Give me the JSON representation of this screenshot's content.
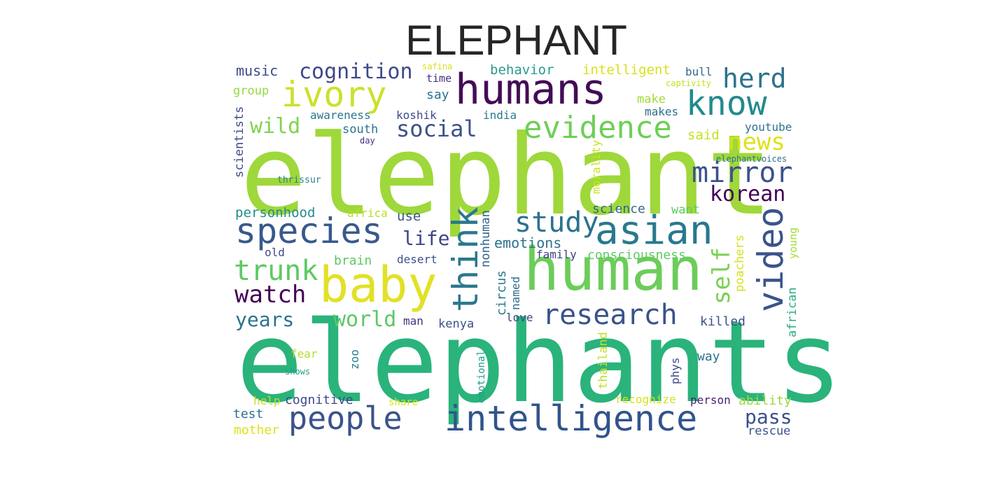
{
  "title": "ELEPHANT",
  "words": [
    {
      "text": "elephant",
      "color": "#9fd83a",
      "vertical": false
    },
    {
      "text": "elephants",
      "color": "#2ab37b",
      "vertical": false
    },
    {
      "text": "humans",
      "color": "#440c57",
      "vertical": false
    },
    {
      "text": "human",
      "color": "#6ccd5a",
      "vertical": false
    },
    {
      "text": "baby",
      "color": "#e1e126",
      "vertical": false
    },
    {
      "text": "intelligence",
      "color": "#31548c",
      "vertical": false
    },
    {
      "text": "asian",
      "color": "#29798e",
      "vertical": false
    },
    {
      "text": "species",
      "color": "#38598c",
      "vertical": false
    },
    {
      "text": "ivory",
      "color": "#cbe12a",
      "vertical": false
    },
    {
      "text": "people",
      "color": "#3a538b",
      "vertical": false
    },
    {
      "text": "know",
      "color": "#238a8d",
      "vertical": false
    },
    {
      "text": "evidence",
      "color": "#6fcf57",
      "vertical": false
    },
    {
      "text": "video",
      "color": "#3a538b",
      "vertical": true
    },
    {
      "text": "think",
      "color": "#2a788e",
      "vertical": true
    },
    {
      "text": "research",
      "color": "#3b528b",
      "vertical": false
    },
    {
      "text": "herd",
      "color": "#2c728e",
      "vertical": false
    },
    {
      "text": "study",
      "color": "#2c718e",
      "vertical": false
    },
    {
      "text": "mirror",
      "color": "#3b528b",
      "vertical": false
    },
    {
      "text": "trunk",
      "color": "#5ec962",
      "vertical": false
    },
    {
      "text": "news",
      "color": "#dde318",
      "vertical": false
    },
    {
      "text": "social",
      "color": "#3b518b",
      "vertical": false
    },
    {
      "text": "cognition",
      "color": "#3e4989",
      "vertical": false
    },
    {
      "text": "watch",
      "color": "#440256",
      "vertical": false
    },
    {
      "text": "world",
      "color": "#5cc863",
      "vertical": false
    },
    {
      "text": "wild",
      "color": "#7fd34e",
      "vertical": false
    },
    {
      "text": "self",
      "color": "#7ad151",
      "vertical": true
    },
    {
      "text": "korean",
      "color": "#440154",
      "vertical": false
    },
    {
      "text": "life",
      "color": "#3f4788",
      "vertical": false
    },
    {
      "text": "years",
      "color": "#2c728e",
      "vertical": false
    },
    {
      "text": "emotions",
      "color": "#2c728e",
      "vertical": false
    },
    {
      "text": "music",
      "color": "#3d4a89",
      "vertical": false
    },
    {
      "text": "behavior",
      "color": "#2a9b8b",
      "vertical": false
    },
    {
      "text": "intelligent",
      "color": "#d8e219",
      "vertical": false
    },
    {
      "text": "bull",
      "color": "#31678e",
      "vertical": false
    },
    {
      "text": "safina",
      "color": "#d7e11a",
      "vertical": false
    },
    {
      "text": "time",
      "color": "#46307e",
      "vertical": false
    },
    {
      "text": "say",
      "color": "#2d708e",
      "vertical": false
    },
    {
      "text": "group",
      "color": "#95d840",
      "vertical": false
    },
    {
      "text": "captivity",
      "color": "#c2df23",
      "vertical": false
    },
    {
      "text": "make",
      "color": "#a2da37",
      "vertical": false
    },
    {
      "text": "makes",
      "color": "#2f6c8e",
      "vertical": false
    },
    {
      "text": "awareness",
      "color": "#2b748e",
      "vertical": false
    },
    {
      "text": "koshik",
      "color": "#3f4889",
      "vertical": false
    },
    {
      "text": "india",
      "color": "#2a7b8e",
      "vertical": false
    },
    {
      "text": "south",
      "color": "#2c738e",
      "vertical": false
    },
    {
      "text": "day",
      "color": "#472d7b",
      "vertical": false
    },
    {
      "text": "scientists",
      "color": "#3f4889",
      "vertical": true
    },
    {
      "text": "said",
      "color": "#c5e021",
      "vertical": false
    },
    {
      "text": "youtube",
      "color": "#2c738e",
      "vertical": false
    },
    {
      "text": "elephantvoices",
      "color": "#2d708e",
      "vertical": false
    },
    {
      "text": "thrissur",
      "color": "#26818e",
      "vertical": false
    },
    {
      "text": "morality",
      "color": "#cae11f",
      "vertical": true
    },
    {
      "text": "personhood",
      "color": "#228c8d",
      "vertical": false
    },
    {
      "text": "africa",
      "color": "#bade28",
      "vertical": false
    },
    {
      "text": "use",
      "color": "#3a548c",
      "vertical": false
    },
    {
      "text": "nonhuman",
      "color": "#33638d",
      "vertical": true
    },
    {
      "text": "science",
      "color": "#31668e",
      "vertical": false
    },
    {
      "text": "want",
      "color": "#5ec962",
      "vertical": false
    },
    {
      "text": "old",
      "color": "#3e4a89",
      "vertical": false
    },
    {
      "text": "family",
      "color": "#423f85",
      "vertical": false
    },
    {
      "text": "consciousness",
      "color": "#5ec962",
      "vertical": false
    },
    {
      "text": "young",
      "color": "#a5db36",
      "vertical": true
    },
    {
      "text": "poachers",
      "color": "#d5e21a",
      "vertical": true
    },
    {
      "text": "brain",
      "color": "#5cc863",
      "vertical": false
    },
    {
      "text": "desert",
      "color": "#3b518b",
      "vertical": false
    },
    {
      "text": "circus",
      "color": "#29798e",
      "vertical": true
    },
    {
      "text": "named",
      "color": "#2f6b8e",
      "vertical": true
    },
    {
      "text": "african",
      "color": "#27ad81",
      "vertical": true
    },
    {
      "text": "love",
      "color": "#3e4989",
      "vertical": false
    },
    {
      "text": "killed",
      "color": "#3b518b",
      "vertical": false
    },
    {
      "text": "kenya",
      "color": "#3b528b",
      "vertical": false
    },
    {
      "text": "man",
      "color": "#46337f",
      "vertical": false
    },
    {
      "text": "fear",
      "color": "#b5de2b",
      "vertical": false
    },
    {
      "text": "zoo",
      "color": "#26828e",
      "vertical": true
    },
    {
      "text": "thailand",
      "color": "#c0df25",
      "vertical": true
    },
    {
      "text": "way",
      "color": "#2d718e",
      "vertical": false
    },
    {
      "text": "shows",
      "color": "#1fa088",
      "vertical": false
    },
    {
      "text": "emotional",
      "color": "#1f9e89",
      "vertical": true
    },
    {
      "text": "phys",
      "color": "#3e4a89",
      "vertical": true
    },
    {
      "text": "help",
      "color": "#c2df23",
      "vertical": false
    },
    {
      "text": "cognitive",
      "color": "#3e4a89",
      "vertical": false
    },
    {
      "text": "share",
      "color": "#dae319",
      "vertical": false
    },
    {
      "text": "recognize",
      "color": "#d5e21a",
      "vertical": false
    },
    {
      "text": "person",
      "color": "#482173",
      "vertical": false
    },
    {
      "text": "ability",
      "color": "#9bd93c",
      "vertical": false
    },
    {
      "text": "test",
      "color": "#2c718e",
      "vertical": false
    },
    {
      "text": "pass",
      "color": "#3c508b",
      "vertical": false
    },
    {
      "text": "mother",
      "color": "#dde318",
      "vertical": false
    },
    {
      "text": "rescue",
      "color": "#3b528b",
      "vertical": false
    }
  ]
}
